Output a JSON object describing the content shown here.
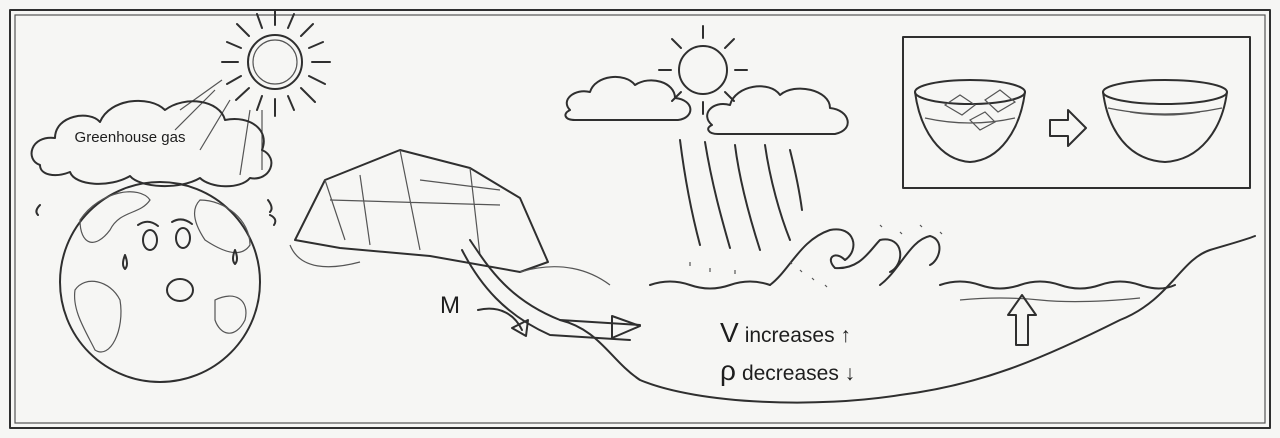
{
  "labels": {
    "greenhouse": "Greenhouse gas",
    "mass": "M"
  },
  "annotations": [
    {
      "symbol": "V",
      "text": "increases ↑"
    },
    {
      "symbol": "ρ",
      "text": "decreases ↓"
    }
  ]
}
